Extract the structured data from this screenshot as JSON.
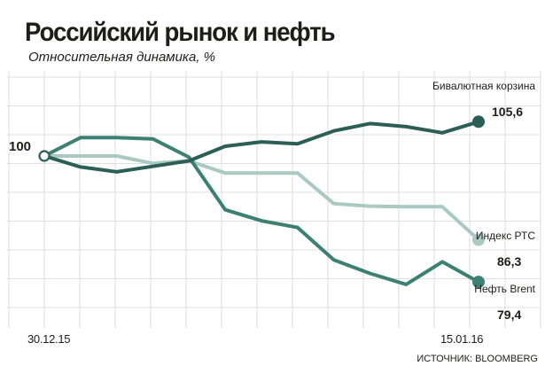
{
  "title": "Российский рынок и нефть",
  "subtitle": "Относительная динамика, %",
  "source": "ИСТОЧНИК: BLOOMBERG",
  "chart_data": {
    "type": "line",
    "title": "Российский рынок и нефть",
    "subtitle": "Относительная динамика, %",
    "x_start_label": "30.12.15",
    "x_end_label": "15.01.16",
    "baseline_label": "100",
    "ylim": [
      75,
      118
    ],
    "grid": true,
    "series": [
      {
        "name": "Бивалютная корзина",
        "end_label": "105,6",
        "color": "#2b5e57",
        "values": [
          100,
          98.2,
          97.4,
          98.3,
          99.2,
          101.6,
          102.3,
          102.0,
          104.1,
          105.3,
          104.8,
          103.8,
          105.6
        ]
      },
      {
        "name": "Индекс РТС",
        "end_label": "86,3",
        "color": "#a9c9c2",
        "values": [
          100,
          100,
          100,
          98.8,
          99.2,
          97.2,
          97.2,
          97.2,
          92.2,
          91.8,
          91.7,
          91.7,
          86.3
        ]
      },
      {
        "name": "Нефть Brent",
        "end_label": "79,4",
        "color": "#3c7f73",
        "values": [
          100,
          103.0,
          103.0,
          102.8,
          99.8,
          91.2,
          89.4,
          88.3,
          83.0,
          80.8,
          79.0,
          82.7,
          79.4
        ]
      }
    ]
  }
}
